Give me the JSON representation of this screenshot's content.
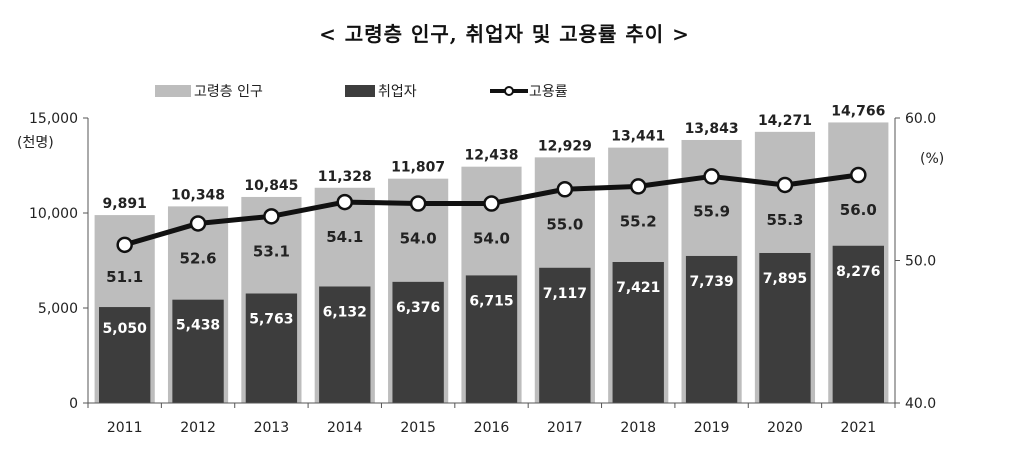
{
  "title": "< 고령층 인구, 취업자 및 고용률 추이 >",
  "chart_data": {
    "type": "bar",
    "categories": [
      "2011",
      "2012",
      "2013",
      "2014",
      "2015",
      "2016",
      "2017",
      "2018",
      "2019",
      "2020",
      "2021"
    ],
    "series": [
      {
        "name": "고령층 인구",
        "kind": "bar",
        "axis": "left",
        "color": "#bdbdbd",
        "values": [
          9891,
          10348,
          10845,
          11328,
          11807,
          12438,
          12929,
          13441,
          13843,
          14271,
          14766
        ],
        "labels": [
          "9,891",
          "10,348",
          "10,845",
          "11,328",
          "11,807",
          "12,438",
          "12,929",
          "13,441",
          "13,843",
          "14,271",
          "14,766"
        ]
      },
      {
        "name": "취업자",
        "kind": "bar",
        "axis": "left",
        "color": "#3d3d3d",
        "values": [
          5050,
          5438,
          5763,
          6132,
          6376,
          6715,
          7117,
          7421,
          7739,
          7895,
          8276
        ],
        "labels": [
          "5,050",
          "5,438",
          "5,763",
          "6,132",
          "6,376",
          "6,715",
          "7,117",
          "7,421",
          "7,739",
          "7,895",
          "8,276"
        ]
      },
      {
        "name": "고용률",
        "kind": "line",
        "axis": "right",
        "color": "#111111",
        "values": [
          51.1,
          52.6,
          53.1,
          54.1,
          54.0,
          54.0,
          55.0,
          55.2,
          55.9,
          55.3,
          56.0
        ],
        "labels": [
          "51.1",
          "52.6",
          "53.1",
          "54.1",
          "54.0",
          "54.0",
          "55.0",
          "55.2",
          "55.9",
          "55.3",
          "56.0"
        ]
      }
    ],
    "y_left": {
      "lim": [
        0,
        15000
      ],
      "ticks": [
        "0",
        "5,000",
        "10,000",
        "15,000"
      ],
      "unit_label": "(천명)"
    },
    "y_right": {
      "lim": [
        40,
        60
      ],
      "ticks": [
        "40.0",
        "50.0",
        "60.0"
      ],
      "unit_label": "(%)"
    },
    "legend_position": "top-left",
    "grid": false
  }
}
